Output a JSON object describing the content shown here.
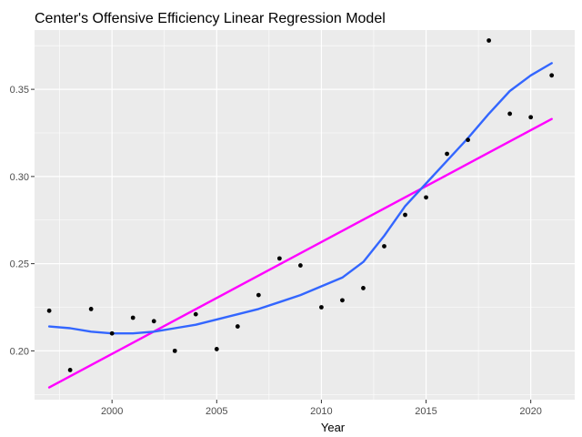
{
  "chart_data": {
    "type": "scatter",
    "title": "Center's Offensive Efficiency Linear Regression Model",
    "xlabel": "Year",
    "ylabel": "",
    "xlim": [
      1996.3,
      2022.1
    ],
    "ylim": [
      0.172,
      0.384
    ],
    "x_ticks": [
      2000,
      2005,
      2010,
      2015,
      2020
    ],
    "y_ticks": [
      0.2,
      0.25,
      0.3,
      0.35
    ],
    "grid": true,
    "background": "#ebebeb",
    "points": [
      {
        "x": 1997,
        "y": 0.223
      },
      {
        "x": 1998,
        "y": 0.189
      },
      {
        "x": 1999,
        "y": 0.224
      },
      {
        "x": 2000,
        "y": 0.21
      },
      {
        "x": 2001,
        "y": 0.219
      },
      {
        "x": 2002,
        "y": 0.217
      },
      {
        "x": 2003,
        "y": 0.2
      },
      {
        "x": 2004,
        "y": 0.221
      },
      {
        "x": 2005,
        "y": 0.201
      },
      {
        "x": 2006,
        "y": 0.214
      },
      {
        "x": 2007,
        "y": 0.232
      },
      {
        "x": 2008,
        "y": 0.253
      },
      {
        "x": 2009,
        "y": 0.249
      },
      {
        "x": 2010,
        "y": 0.225
      },
      {
        "x": 2011,
        "y": 0.229
      },
      {
        "x": 2012,
        "y": 0.236
      },
      {
        "x": 2013,
        "y": 0.26
      },
      {
        "x": 2014,
        "y": 0.278
      },
      {
        "x": 2015,
        "y": 0.288
      },
      {
        "x": 2016,
        "y": 0.313
      },
      {
        "x": 2017,
        "y": 0.321
      },
      {
        "x": 2018,
        "y": 0.378
      },
      {
        "x": 2019,
        "y": 0.336
      },
      {
        "x": 2020,
        "y": 0.334
      },
      {
        "x": 2021,
        "y": 0.358
      }
    ],
    "series": [
      {
        "type": "line",
        "color": "#ff00ff",
        "points": [
          {
            "x": 1997,
            "y": 0.179
          },
          {
            "x": 2021,
            "y": 0.333
          }
        ]
      },
      {
        "type": "smooth",
        "color": "#3366ff",
        "points": [
          {
            "x": 1997,
            "y": 0.214
          },
          {
            "x": 1998,
            "y": 0.213
          },
          {
            "x": 1999,
            "y": 0.211
          },
          {
            "x": 2000,
            "y": 0.21
          },
          {
            "x": 2001,
            "y": 0.21
          },
          {
            "x": 2002,
            "y": 0.211
          },
          {
            "x": 2003,
            "y": 0.213
          },
          {
            "x": 2004,
            "y": 0.215
          },
          {
            "x": 2005,
            "y": 0.218
          },
          {
            "x": 2006,
            "y": 0.221
          },
          {
            "x": 2007,
            "y": 0.224
          },
          {
            "x": 2008,
            "y": 0.228
          },
          {
            "x": 2009,
            "y": 0.232
          },
          {
            "x": 2010,
            "y": 0.237
          },
          {
            "x": 2011,
            "y": 0.242
          },
          {
            "x": 2012,
            "y": 0.251
          },
          {
            "x": 2013,
            "y": 0.266
          },
          {
            "x": 2014,
            "y": 0.283
          },
          {
            "x": 2015,
            "y": 0.296
          },
          {
            "x": 2016,
            "y": 0.309
          },
          {
            "x": 2017,
            "y": 0.322
          },
          {
            "x": 2018,
            "y": 0.336
          },
          {
            "x": 2019,
            "y": 0.349
          },
          {
            "x": 2020,
            "y": 0.358
          },
          {
            "x": 2021,
            "y": 0.365
          }
        ]
      }
    ]
  }
}
